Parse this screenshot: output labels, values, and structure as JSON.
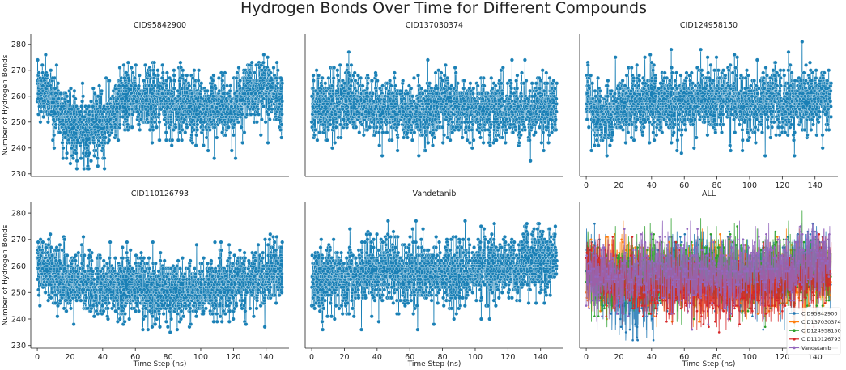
{
  "figure": {
    "suptitle": "Hydrogen Bonds Over Time for Different Compounds",
    "colors": {
      "CID95842900": "#1f77b4",
      "CID137030374": "#ff7f0e",
      "CID124958150": "#2ca02c",
      "CID110126793": "#d62728",
      "Vandetanib": "#9467bd",
      "panel_color": "#1a80b6"
    }
  },
  "chart_data": [
    {
      "type": "line",
      "title": "CID95842900",
      "xlabel": "",
      "ylabel": "Number of Hydrogen Bonds",
      "xlim": [
        -4,
        154
      ],
      "ylim": [
        229,
        284
      ],
      "xticks": [],
      "yticks": [
        230,
        240,
        250,
        260,
        270,
        280
      ],
      "markers": true,
      "n_points": 1500,
      "dt_ns": 0.1,
      "series": [
        {
          "name": "CID95842900",
          "x_range": [
            0,
            150
          ],
          "mean": 256,
          "std": 6.5,
          "min": 232,
          "max": 283,
          "trend": [
            [
              0,
              262
            ],
            [
              10,
              258
            ],
            [
              20,
              250
            ],
            [
              30,
              247
            ],
            [
              40,
              248
            ],
            [
              50,
              257
            ],
            [
              60,
              260
            ],
            [
              80,
              258
            ],
            [
              100,
              255
            ],
            [
              120,
              255
            ],
            [
              130,
              262
            ],
            [
              140,
              265
            ],
            [
              150,
              258
            ]
          ]
        }
      ]
    },
    {
      "type": "line",
      "title": "CID137030374",
      "xlabel": "",
      "ylabel": "",
      "xlim": [
        -4,
        154
      ],
      "ylim": [
        229,
        284
      ],
      "xticks": [],
      "yticks": [],
      "markers": true,
      "n_points": 1500,
      "dt_ns": 0.1,
      "series": [
        {
          "name": "CID137030374",
          "x_range": [
            0,
            150
          ],
          "mean": 256,
          "std": 6,
          "min": 231,
          "max": 280,
          "trend": [
            [
              0,
              256
            ],
            [
              20,
              258
            ],
            [
              40,
              256
            ],
            [
              60,
              253
            ],
            [
              80,
              257
            ],
            [
              100,
              255
            ],
            [
              120,
              254
            ],
            [
              140,
              256
            ],
            [
              150,
              255
            ]
          ]
        }
      ]
    },
    {
      "type": "line",
      "title": "CID124958150",
      "xlabel": "",
      "ylabel": "",
      "xlim": [
        -4,
        154
      ],
      "ylim": [
        229,
        284
      ],
      "xticks": [
        0,
        20,
        40,
        60,
        80,
        100,
        120,
        140
      ],
      "yticks": [],
      "markers": true,
      "n_points": 1500,
      "dt_ns": 0.1,
      "series": [
        {
          "name": "CID124958150",
          "x_range": [
            0,
            150
          ],
          "mean": 257,
          "std": 6.5,
          "min": 237,
          "max": 282,
          "trend": [
            [
              0,
              258
            ],
            [
              10,
              252
            ],
            [
              20,
              256
            ],
            [
              40,
              258
            ],
            [
              60,
              257
            ],
            [
              80,
              258
            ],
            [
              100,
              257
            ],
            [
              120,
              258
            ],
            [
              140,
              260
            ],
            [
              150,
              258
            ]
          ]
        }
      ]
    },
    {
      "type": "line",
      "title": "CID110126793",
      "xlabel": "Time Step (ns)",
      "ylabel": "Number of Hydrogen Bonds",
      "xlim": [
        -4,
        154
      ],
      "ylim": [
        229,
        284
      ],
      "xticks": [
        0,
        20,
        40,
        60,
        80,
        100,
        120,
        140
      ],
      "yticks": [
        230,
        240,
        250,
        260,
        270,
        280
      ],
      "markers": true,
      "n_points": 1500,
      "dt_ns": 0.1,
      "series": [
        {
          "name": "CID110126793",
          "x_range": [
            0,
            150
          ],
          "mean": 253,
          "std": 6,
          "min": 233,
          "max": 280,
          "trend": [
            [
              0,
              262
            ],
            [
              10,
              256
            ],
            [
              30,
              253
            ],
            [
              60,
              252
            ],
            [
              90,
              250
            ],
            [
              110,
              252
            ],
            [
              130,
              255
            ],
            [
              150,
              258
            ]
          ]
        }
      ]
    },
    {
      "type": "line",
      "title": "Vandetanib",
      "xlabel": "Time Step (ns)",
      "ylabel": "",
      "xlim": [
        -4,
        154
      ],
      "ylim": [
        229,
        284
      ],
      "xticks": [
        0,
        20,
        40,
        60,
        80,
        100,
        120,
        140
      ],
      "yticks": [],
      "markers": true,
      "n_points": 1500,
      "dt_ns": 0.1,
      "series": [
        {
          "name": "Vandetanib",
          "x_range": [
            0,
            150
          ],
          "mean": 258,
          "std": 6.5,
          "min": 236,
          "max": 279,
          "trend": [
            [
              0,
              255
            ],
            [
              20,
              256
            ],
            [
              40,
              258
            ],
            [
              60,
              258
            ],
            [
              80,
              257
            ],
            [
              100,
              259
            ],
            [
              120,
              260
            ],
            [
              140,
              262
            ],
            [
              150,
              262
            ]
          ]
        }
      ]
    },
    {
      "type": "line",
      "title": "ALL",
      "xlabel": "Time Step (ns)",
      "ylabel": "",
      "xlim": [
        -4,
        154
      ],
      "ylim": [
        229,
        284
      ],
      "xticks": [
        0,
        20,
        40,
        60,
        80,
        100,
        120,
        140
      ],
      "yticks": [],
      "markers": true,
      "n_points": 1500,
      "dt_ns": 0.1,
      "legend": {
        "placement": "lower-right",
        "entries": [
          "CID95842900",
          "CID137030374",
          "CID124958150",
          "CID110126793",
          "Vandetanib"
        ]
      },
      "series": [
        {
          "name": "CID95842900",
          "ref": 0
        },
        {
          "name": "CID137030374",
          "ref": 1
        },
        {
          "name": "CID124958150",
          "ref": 2
        },
        {
          "name": "CID110126793",
          "ref": 3
        },
        {
          "name": "Vandetanib",
          "ref": 4
        }
      ]
    }
  ]
}
